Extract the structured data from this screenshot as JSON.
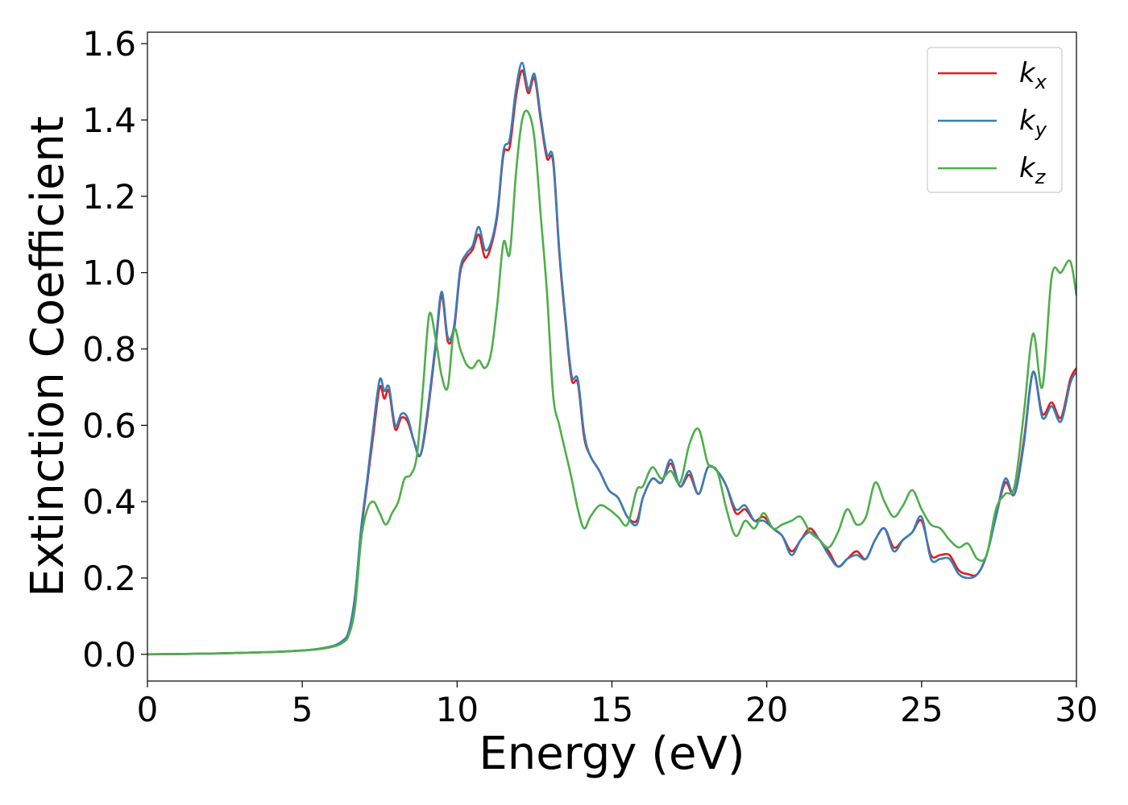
{
  "chart_data": {
    "type": "line",
    "xlabel": "Energy (eV)",
    "ylabel": "Extinction Coefficient",
    "xlim": [
      0,
      30
    ],
    "ylim": [
      -0.07,
      1.63
    ],
    "xticks": [
      0,
      5,
      10,
      15,
      20,
      25,
      30
    ],
    "xtick_labels": [
      "0",
      "5",
      "10",
      "15",
      "20",
      "25",
      "30"
    ],
    "yticks": [
      0.0,
      0.2,
      0.4,
      0.6,
      0.8,
      1.0,
      1.2,
      1.4,
      1.6
    ],
    "ytick_labels": [
      "0.0",
      "0.2",
      "0.4",
      "0.6",
      "0.8",
      "1.0",
      "1.2",
      "1.4",
      "1.6"
    ],
    "grid": false,
    "legend_position": "top-right",
    "series": [
      {
        "name": "k",
        "subscript": "x",
        "color": "#e41a1c",
        "x": [
          0,
          2,
          4,
          5,
          5.5,
          6,
          6.3,
          6.5,
          6.7,
          6.9,
          7.1,
          7.3,
          7.5,
          7.65,
          7.8,
          8.0,
          8.2,
          8.4,
          8.6,
          8.8,
          9.0,
          9.3,
          9.5,
          9.7,
          9.9,
          10.1,
          10.3,
          10.5,
          10.7,
          10.9,
          11.1,
          11.3,
          11.5,
          11.7,
          11.9,
          12.1,
          12.3,
          12.5,
          12.7,
          12.9,
          13.1,
          13.3,
          13.5,
          13.7,
          13.9,
          14.1,
          14.3,
          14.6,
          14.9,
          15.2,
          15.5,
          15.8,
          16.0,
          16.3,
          16.6,
          16.9,
          17.2,
          17.5,
          17.8,
          18.1,
          18.4,
          18.7,
          19.0,
          19.3,
          19.6,
          19.9,
          20.2,
          20.5,
          20.8,
          21.1,
          21.4,
          21.7,
          22.0,
          22.3,
          22.6,
          22.9,
          23.2,
          23.5,
          23.8,
          24.1,
          24.4,
          24.7,
          25.0,
          25.3,
          25.6,
          25.9,
          26.2,
          26.5,
          26.8,
          27.1,
          27.4,
          27.7,
          28.0,
          28.3,
          28.6,
          28.9,
          29.2,
          29.5,
          29.8,
          30.0
        ],
        "values": [
          0.0,
          0.002,
          0.006,
          0.01,
          0.014,
          0.022,
          0.035,
          0.06,
          0.15,
          0.32,
          0.45,
          0.58,
          0.7,
          0.67,
          0.69,
          0.59,
          0.62,
          0.61,
          0.56,
          0.52,
          0.6,
          0.8,
          0.94,
          0.82,
          0.85,
          1.0,
          1.04,
          1.06,
          1.1,
          1.04,
          1.07,
          1.15,
          1.31,
          1.33,
          1.46,
          1.53,
          1.47,
          1.51,
          1.4,
          1.3,
          1.29,
          1.05,
          0.87,
          0.72,
          0.71,
          0.57,
          0.52,
          0.48,
          0.43,
          0.41,
          0.36,
          0.35,
          0.41,
          0.46,
          0.45,
          0.5,
          0.44,
          0.47,
          0.42,
          0.49,
          0.48,
          0.44,
          0.37,
          0.38,
          0.35,
          0.36,
          0.33,
          0.31,
          0.27,
          0.3,
          0.33,
          0.3,
          0.27,
          0.23,
          0.25,
          0.27,
          0.25,
          0.3,
          0.33,
          0.28,
          0.3,
          0.32,
          0.35,
          0.26,
          0.26,
          0.26,
          0.22,
          0.21,
          0.21,
          0.26,
          0.36,
          0.45,
          0.42,
          0.56,
          0.74,
          0.63,
          0.66,
          0.62,
          0.72,
          0.75
        ]
      },
      {
        "name": "k",
        "subscript": "y",
        "color": "#377eb8",
        "x": [
          0,
          2,
          4,
          5,
          5.5,
          6,
          6.3,
          6.5,
          6.7,
          6.9,
          7.1,
          7.3,
          7.5,
          7.65,
          7.8,
          8.0,
          8.2,
          8.4,
          8.6,
          8.8,
          9.0,
          9.3,
          9.5,
          9.7,
          9.9,
          10.1,
          10.3,
          10.5,
          10.7,
          10.9,
          11.1,
          11.3,
          11.5,
          11.7,
          11.9,
          12.1,
          12.3,
          12.5,
          12.7,
          12.9,
          13.1,
          13.3,
          13.5,
          13.7,
          13.9,
          14.1,
          14.3,
          14.6,
          14.9,
          15.2,
          15.5,
          15.8,
          16.0,
          16.3,
          16.6,
          16.9,
          17.2,
          17.5,
          17.8,
          18.1,
          18.4,
          18.7,
          19.0,
          19.3,
          19.6,
          19.9,
          20.2,
          20.5,
          20.8,
          21.1,
          21.4,
          21.7,
          22.0,
          22.3,
          22.6,
          22.9,
          23.2,
          23.5,
          23.8,
          24.1,
          24.4,
          24.7,
          25.0,
          25.3,
          25.6,
          25.9,
          26.2,
          26.5,
          26.8,
          27.1,
          27.4,
          27.7,
          28.0,
          28.3,
          28.6,
          28.9,
          29.2,
          29.5,
          29.8,
          30.0
        ],
        "values": [
          0.0,
          0.002,
          0.006,
          0.01,
          0.014,
          0.022,
          0.035,
          0.06,
          0.15,
          0.33,
          0.46,
          0.6,
          0.72,
          0.69,
          0.7,
          0.6,
          0.63,
          0.62,
          0.56,
          0.52,
          0.61,
          0.81,
          0.95,
          0.83,
          0.86,
          1.01,
          1.05,
          1.07,
          1.12,
          1.06,
          1.08,
          1.16,
          1.32,
          1.35,
          1.48,
          1.55,
          1.48,
          1.52,
          1.41,
          1.31,
          1.3,
          1.06,
          0.88,
          0.73,
          0.72,
          0.58,
          0.52,
          0.48,
          0.43,
          0.41,
          0.36,
          0.34,
          0.41,
          0.46,
          0.45,
          0.51,
          0.44,
          0.48,
          0.42,
          0.49,
          0.48,
          0.44,
          0.38,
          0.39,
          0.35,
          0.35,
          0.33,
          0.31,
          0.26,
          0.3,
          0.32,
          0.3,
          0.26,
          0.23,
          0.25,
          0.26,
          0.25,
          0.3,
          0.33,
          0.27,
          0.3,
          0.32,
          0.36,
          0.25,
          0.25,
          0.25,
          0.21,
          0.2,
          0.21,
          0.26,
          0.36,
          0.46,
          0.42,
          0.55,
          0.74,
          0.62,
          0.65,
          0.61,
          0.71,
          0.74
        ]
      },
      {
        "name": "k",
        "subscript": "z",
        "color": "#4daf4a",
        "x": [
          0,
          2,
          4,
          5,
          5.5,
          6,
          6.3,
          6.5,
          6.7,
          6.9,
          7.1,
          7.3,
          7.5,
          7.7,
          7.9,
          8.1,
          8.3,
          8.5,
          8.7,
          8.9,
          9.1,
          9.3,
          9.5,
          9.7,
          9.9,
          10.1,
          10.3,
          10.5,
          10.7,
          10.9,
          11.1,
          11.3,
          11.5,
          11.7,
          11.9,
          12.1,
          12.3,
          12.5,
          12.7,
          12.9,
          13.1,
          13.3,
          13.5,
          13.7,
          13.9,
          14.1,
          14.3,
          14.6,
          14.9,
          15.2,
          15.5,
          15.8,
          16.0,
          16.3,
          16.6,
          16.9,
          17.2,
          17.5,
          17.8,
          18.1,
          18.4,
          18.7,
          19.0,
          19.3,
          19.6,
          19.9,
          20.2,
          20.5,
          20.8,
          21.1,
          21.4,
          21.7,
          22.0,
          22.3,
          22.6,
          22.9,
          23.2,
          23.5,
          23.8,
          24.1,
          24.4,
          24.7,
          25.0,
          25.3,
          25.6,
          25.9,
          26.2,
          26.5,
          26.8,
          27.1,
          27.4,
          27.7,
          28.0,
          28.3,
          28.6,
          28.9,
          29.2,
          29.5,
          29.8,
          30.0
        ],
        "values": [
          0.0,
          0.002,
          0.006,
          0.01,
          0.013,
          0.02,
          0.03,
          0.05,
          0.12,
          0.3,
          0.38,
          0.4,
          0.37,
          0.34,
          0.37,
          0.4,
          0.46,
          0.47,
          0.52,
          0.7,
          0.89,
          0.83,
          0.73,
          0.7,
          0.85,
          0.8,
          0.76,
          0.75,
          0.77,
          0.75,
          0.79,
          0.92,
          1.08,
          1.05,
          1.26,
          1.4,
          1.42,
          1.35,
          1.15,
          0.95,
          0.68,
          0.6,
          0.53,
          0.46,
          0.38,
          0.33,
          0.36,
          0.39,
          0.38,
          0.36,
          0.34,
          0.43,
          0.44,
          0.49,
          0.46,
          0.48,
          0.45,
          0.55,
          0.59,
          0.5,
          0.48,
          0.38,
          0.31,
          0.35,
          0.33,
          0.37,
          0.33,
          0.34,
          0.35,
          0.36,
          0.32,
          0.3,
          0.28,
          0.32,
          0.38,
          0.34,
          0.36,
          0.45,
          0.4,
          0.36,
          0.39,
          0.43,
          0.38,
          0.34,
          0.33,
          0.3,
          0.28,
          0.29,
          0.25,
          0.26,
          0.38,
          0.42,
          0.44,
          0.63,
          0.84,
          0.7,
          0.99,
          1.0,
          1.03,
          0.94
        ]
      }
    ]
  }
}
